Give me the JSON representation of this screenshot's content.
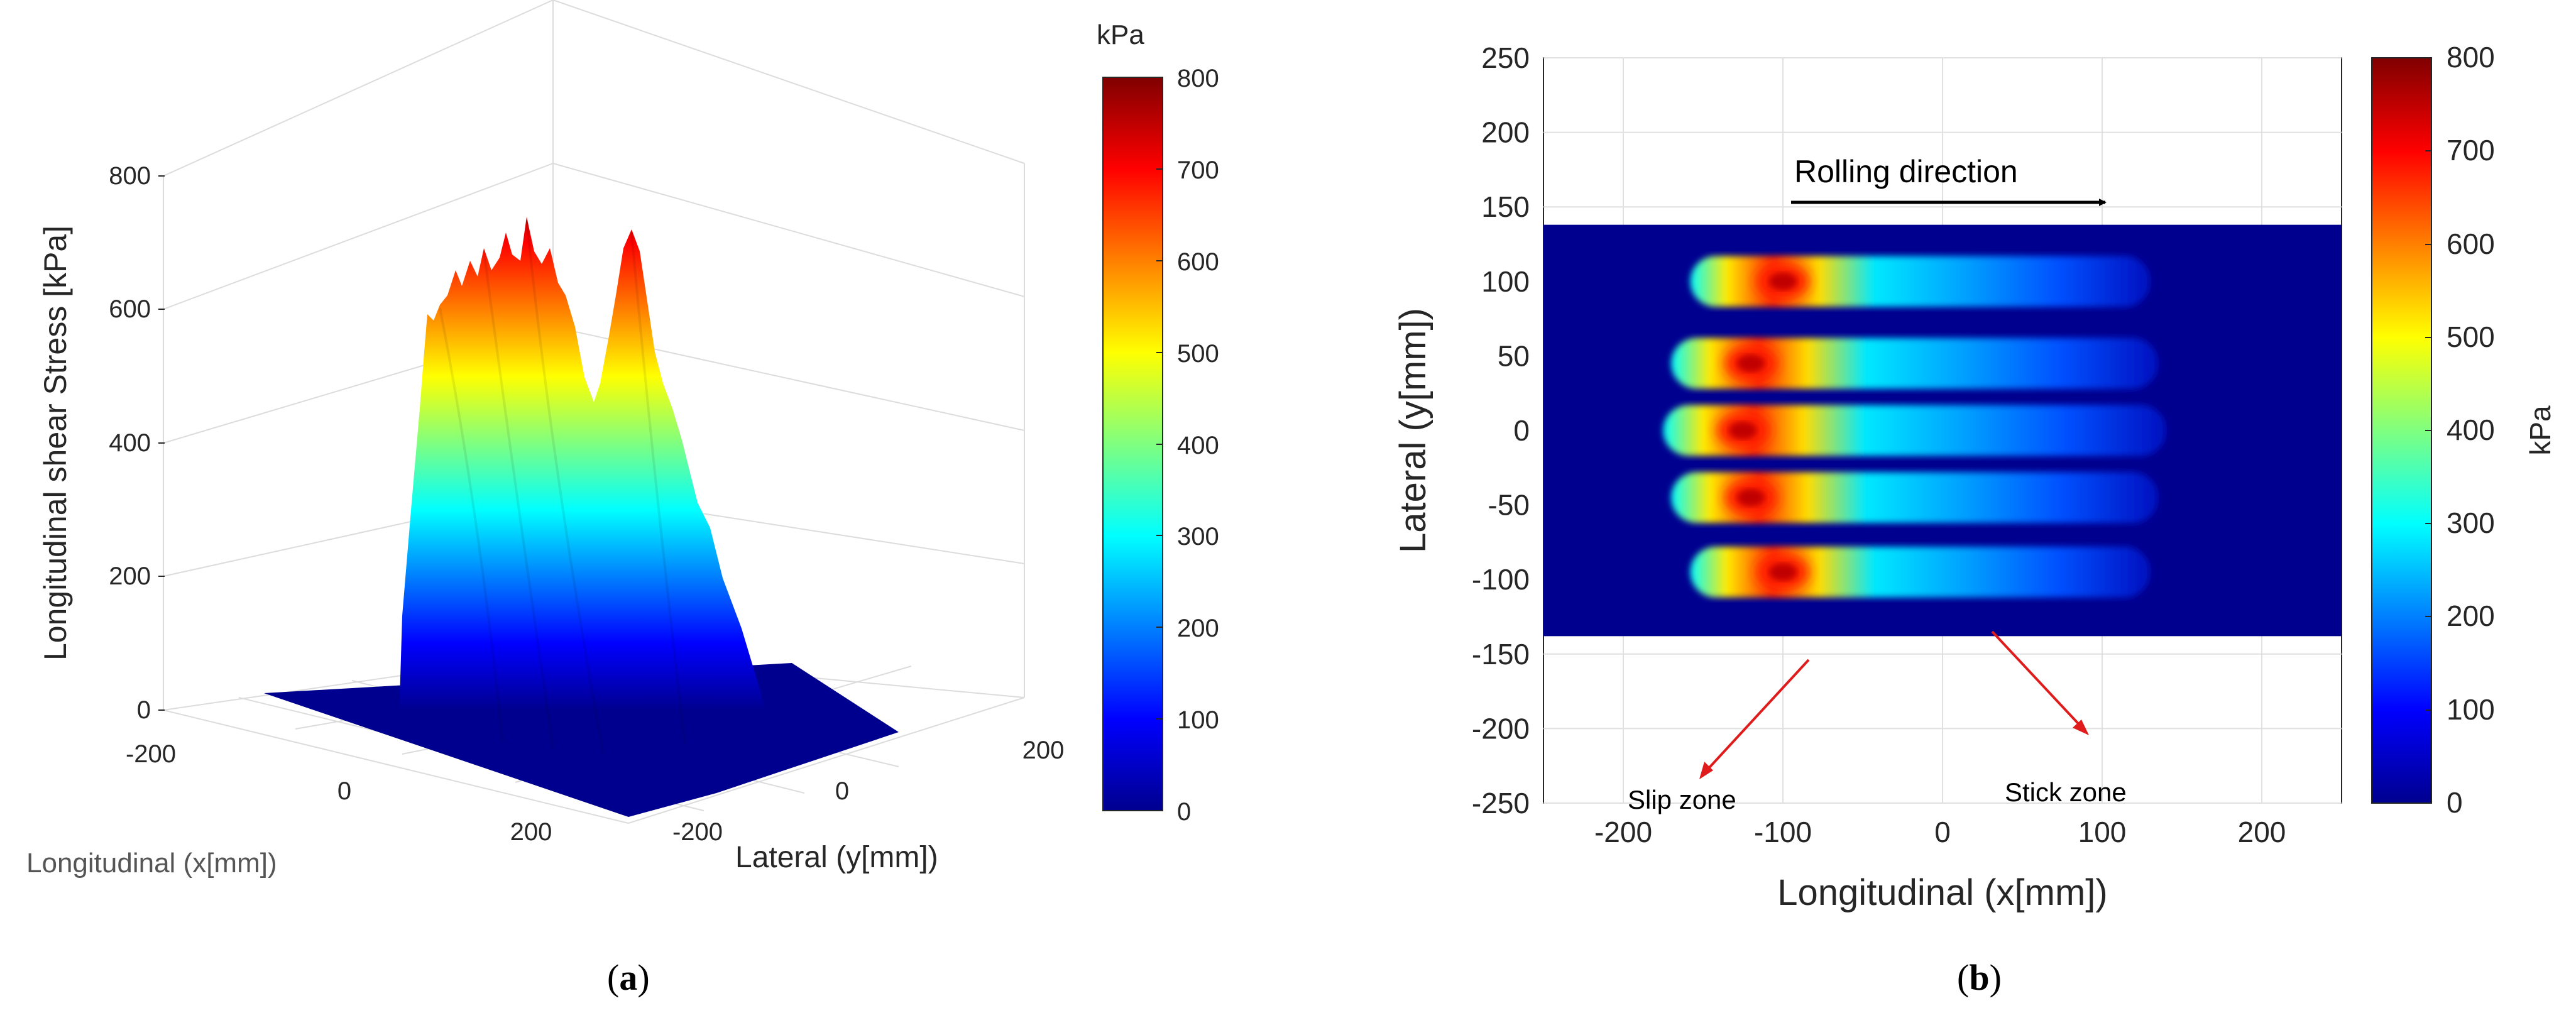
{
  "panel_labels": {
    "a": {
      "open": "(",
      "letter": "a",
      "close": ")"
    },
    "b": {
      "open": "(",
      "letter": "b",
      "close": ")"
    }
  },
  "chart_data": [
    {
      "type": "surface3d",
      "panel": "a",
      "zlabel": "Longitudinal shear Stress [kPa]",
      "xlabel": "Longitudinal (x[mm])",
      "ylabel": "Lateral (y[mm])",
      "z_ticks": [
        "0",
        "200",
        "400",
        "600",
        "800"
      ],
      "x_ticks": [
        "-200",
        "0",
        "200"
      ],
      "y_ticks": [
        "-200",
        "0",
        "200"
      ],
      "zlim": [
        0,
        800
      ],
      "grid": true,
      "colorbar": {
        "label": "kPa",
        "ticks": [
          "0",
          "100",
          "200",
          "300",
          "400",
          "500",
          "600",
          "700",
          "800"
        ],
        "range": [
          0,
          800
        ],
        "colormap": "jet"
      },
      "peaks_kPa": [
        590,
        680,
        700,
        720,
        640,
        700,
        600,
        700
      ]
    },
    {
      "type": "heatmap",
      "panel": "b",
      "xlabel": "Longitudinal (x[mm])",
      "ylabel": "Lateral (y[mm])",
      "xlim": [
        -250,
        250
      ],
      "ylim": [
        -250,
        250
      ],
      "x_ticks": [
        "-200",
        "-100",
        "0",
        "100",
        "200"
      ],
      "y_ticks": [
        "250",
        "200",
        "150",
        "100",
        "50",
        "0",
        "-50",
        "-100",
        "-150",
        "-200",
        "-250"
      ],
      "grid": true,
      "colorbar": {
        "label": "kPa",
        "ticks": [
          "0",
          "100",
          "200",
          "300",
          "400",
          "500",
          "600",
          "700",
          "800"
        ],
        "range": [
          0,
          800
        ],
        "colormap": "jet"
      },
      "field_extent": {
        "x": [
          -250,
          250
        ],
        "y": [
          -138,
          138
        ]
      },
      "ribs": [
        {
          "y_center": 100,
          "x_start": -68,
          "x_end": 130,
          "peak_x": -100,
          "peak_kPa": 650
        },
        {
          "y_center": 45,
          "x_start": -80,
          "x_end": 135,
          "peak_x": -120,
          "peak_kPa": 700
        },
        {
          "y_center": 0,
          "x_start": -85,
          "x_end": 140,
          "peak_x": -125,
          "peak_kPa": 700
        },
        {
          "y_center": -45,
          "x_start": -80,
          "x_end": 135,
          "peak_x": -120,
          "peak_kPa": 700
        },
        {
          "y_center": -95,
          "x_start": -68,
          "x_end": 130,
          "peak_x": -100,
          "peak_kPa": 680
        }
      ],
      "annotations": {
        "rolling_direction": "Rolling direction",
        "slip_zone": "Slip zone",
        "stick_zone": "Stick zone"
      }
    }
  ]
}
